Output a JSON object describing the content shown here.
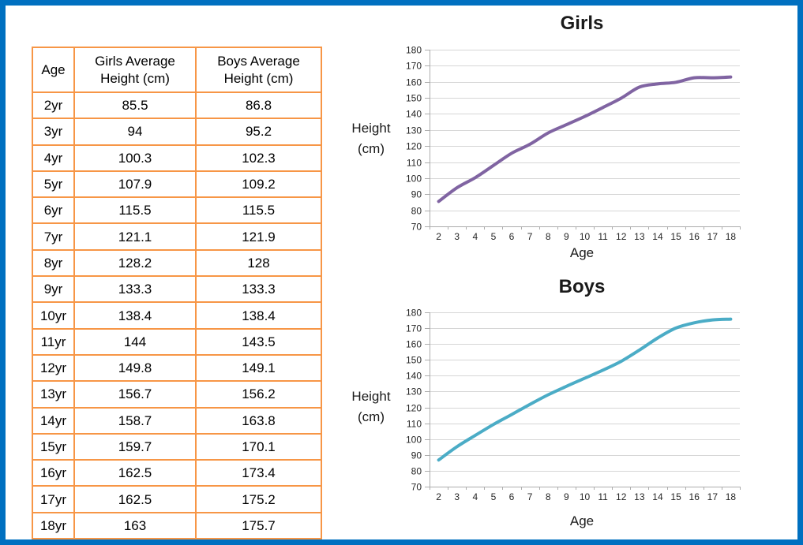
{
  "table": {
    "columns": [
      "Age",
      "Girls Average Height (cm)",
      "Boys Average Height (cm)"
    ],
    "rows": [
      {
        "age": "2yr",
        "girls": "85.5",
        "boys": "86.8"
      },
      {
        "age": "3yr",
        "girls": "94",
        "boys": "95.2"
      },
      {
        "age": "4yr",
        "girls": "100.3",
        "boys": "102.3"
      },
      {
        "age": "5yr",
        "girls": "107.9",
        "boys": "109.2"
      },
      {
        "age": "6yr",
        "girls": "115.5",
        "boys": "115.5"
      },
      {
        "age": "7yr",
        "girls": "121.1",
        "boys": "121.9"
      },
      {
        "age": "8yr",
        "girls": "128.2",
        "boys": "128"
      },
      {
        "age": "9yr",
        "girls": "133.3",
        "boys": "133.3"
      },
      {
        "age": "10yr",
        "girls": "138.4",
        "boys": "138.4"
      },
      {
        "age": "11yr",
        "girls": "144",
        "boys": "143.5"
      },
      {
        "age": "12yr",
        "girls": "149.8",
        "boys": "149.1"
      },
      {
        "age": "13yr",
        "girls": "156.7",
        "boys": "156.2"
      },
      {
        "age": "14yr",
        "girls": "158.7",
        "boys": "163.8"
      },
      {
        "age": "15yr",
        "girls": "159.7",
        "boys": "170.1"
      },
      {
        "age": "16yr",
        "girls": "162.5",
        "boys": "173.4"
      },
      {
        "age": "17yr",
        "girls": "162.5",
        "boys": "175.2"
      },
      {
        "age": "18yr",
        "girls": "163",
        "boys": "175.7"
      }
    ]
  },
  "chart_data": [
    {
      "type": "line",
      "title": "Girls",
      "xlabel": "Age",
      "ylabel": "Height (cm)",
      "categories": [
        "2",
        "3",
        "4",
        "5",
        "6",
        "7",
        "8",
        "9",
        "10",
        "11",
        "12",
        "13",
        "14",
        "15",
        "16",
        "17",
        "18"
      ],
      "values": [
        85.5,
        94,
        100.3,
        107.9,
        115.5,
        121.1,
        128.2,
        133.3,
        138.4,
        144,
        149.8,
        156.7,
        158.7,
        159.7,
        162.5,
        162.5,
        163
      ],
      "ylim": [
        70,
        180
      ],
      "ytick_step": 10,
      "grid": true,
      "legend": false,
      "smooth": true,
      "line_color": "#8064A2"
    },
    {
      "type": "line",
      "title": "Boys",
      "xlabel": "Age",
      "ylabel": "Height (cm)",
      "categories": [
        "2",
        "3",
        "4",
        "5",
        "6",
        "7",
        "8",
        "9",
        "10",
        "11",
        "12",
        "13",
        "14",
        "15",
        "16",
        "17",
        "18"
      ],
      "values": [
        86.8,
        95.2,
        102.3,
        109.2,
        115.5,
        121.9,
        128,
        133.3,
        138.4,
        143.5,
        149.1,
        156.2,
        163.8,
        170.1,
        173.4,
        175.2,
        175.7
      ],
      "ylim": [
        70,
        180
      ],
      "ytick_step": 10,
      "grid": true,
      "legend": false,
      "smooth": true,
      "line_color": "#4BACC6"
    }
  ],
  "colors": {
    "frame_border": "#0070C0",
    "table_border": "#F79646",
    "gridline": "#D6D6D6",
    "axis": "#ADADAD",
    "tick_text": "#262626"
  }
}
